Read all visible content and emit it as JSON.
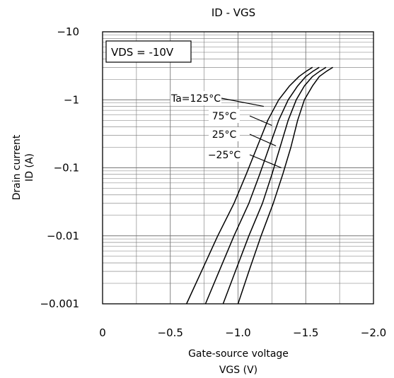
{
  "chart_data": {
    "type": "line",
    "title": "ID - VGS",
    "xlabel_line1": "Gate-source voltage",
    "xlabel_line2": "VGS (V)",
    "ylabel_line1": "Drain current",
    "ylabel_line2": "ID (A)",
    "condition": "VDS = -10V",
    "x_scale": "linear",
    "y_scale": "log",
    "xlim": [
      0,
      -2.0
    ],
    "ylim": [
      -0.001,
      -10
    ],
    "x_ticks": [
      0,
      -0.5,
      -1.0,
      -1.5,
      -2.0
    ],
    "x_tick_labels": [
      "0",
      "−0.5",
      "−1.0",
      "−1.5",
      "−2.0"
    ],
    "y_ticks": [
      -10,
      -1,
      -0.1,
      -0.01,
      -0.001
    ],
    "y_tick_labels": [
      "−10",
      "−1",
      "−0.1",
      "−0.01",
      "−0.001"
    ],
    "grid": true,
    "series": [
      {
        "name": "Ta=125°C",
        "x": [
          -0.62,
          -0.73,
          -0.85,
          -0.97,
          -1.06,
          -1.14,
          -1.22,
          -1.3,
          -1.38,
          -1.45,
          -1.5,
          -1.55
        ],
        "y": [
          -0.001,
          -0.003,
          -0.01,
          -0.03,
          -0.08,
          -0.2,
          -0.5,
          -1.0,
          -1.6,
          -2.2,
          -2.6,
          -3.0
        ],
        "label_at": [
          -1.19,
          -0.8
        ]
      },
      {
        "name": "75°C",
        "x": [
          -0.76,
          -0.86,
          -0.97,
          -1.08,
          -1.16,
          -1.23,
          -1.3,
          -1.37,
          -1.44,
          -1.5,
          -1.55,
          -1.6
        ],
        "y": [
          -0.001,
          -0.003,
          -0.01,
          -0.03,
          -0.08,
          -0.2,
          -0.5,
          -1.0,
          -1.6,
          -2.2,
          -2.6,
          -3.0
        ],
        "label_at": [
          -1.25,
          -0.42
        ]
      },
      {
        "name": "25°C",
        "x": [
          -0.89,
          -0.98,
          -1.08,
          -1.18,
          -1.25,
          -1.31,
          -1.37,
          -1.43,
          -1.49,
          -1.55,
          -1.6,
          -1.65
        ],
        "y": [
          -0.001,
          -0.003,
          -0.01,
          -0.03,
          -0.08,
          -0.2,
          -0.5,
          -1.0,
          -1.6,
          -2.2,
          -2.6,
          -3.0
        ],
        "label_at": [
          -1.28,
          -0.21
        ]
      },
      {
        "name": "−25°C",
        "x": [
          -1.0,
          -1.08,
          -1.17,
          -1.26,
          -1.33,
          -1.39,
          -1.44,
          -1.49,
          -1.55,
          -1.6,
          -1.65,
          -1.7
        ],
        "y": [
          -0.001,
          -0.003,
          -0.01,
          -0.03,
          -0.08,
          -0.2,
          -0.5,
          -1.0,
          -1.6,
          -2.2,
          -2.6,
          -3.0
        ],
        "label_at": [
          -1.32,
          -0.1
        ]
      }
    ]
  }
}
